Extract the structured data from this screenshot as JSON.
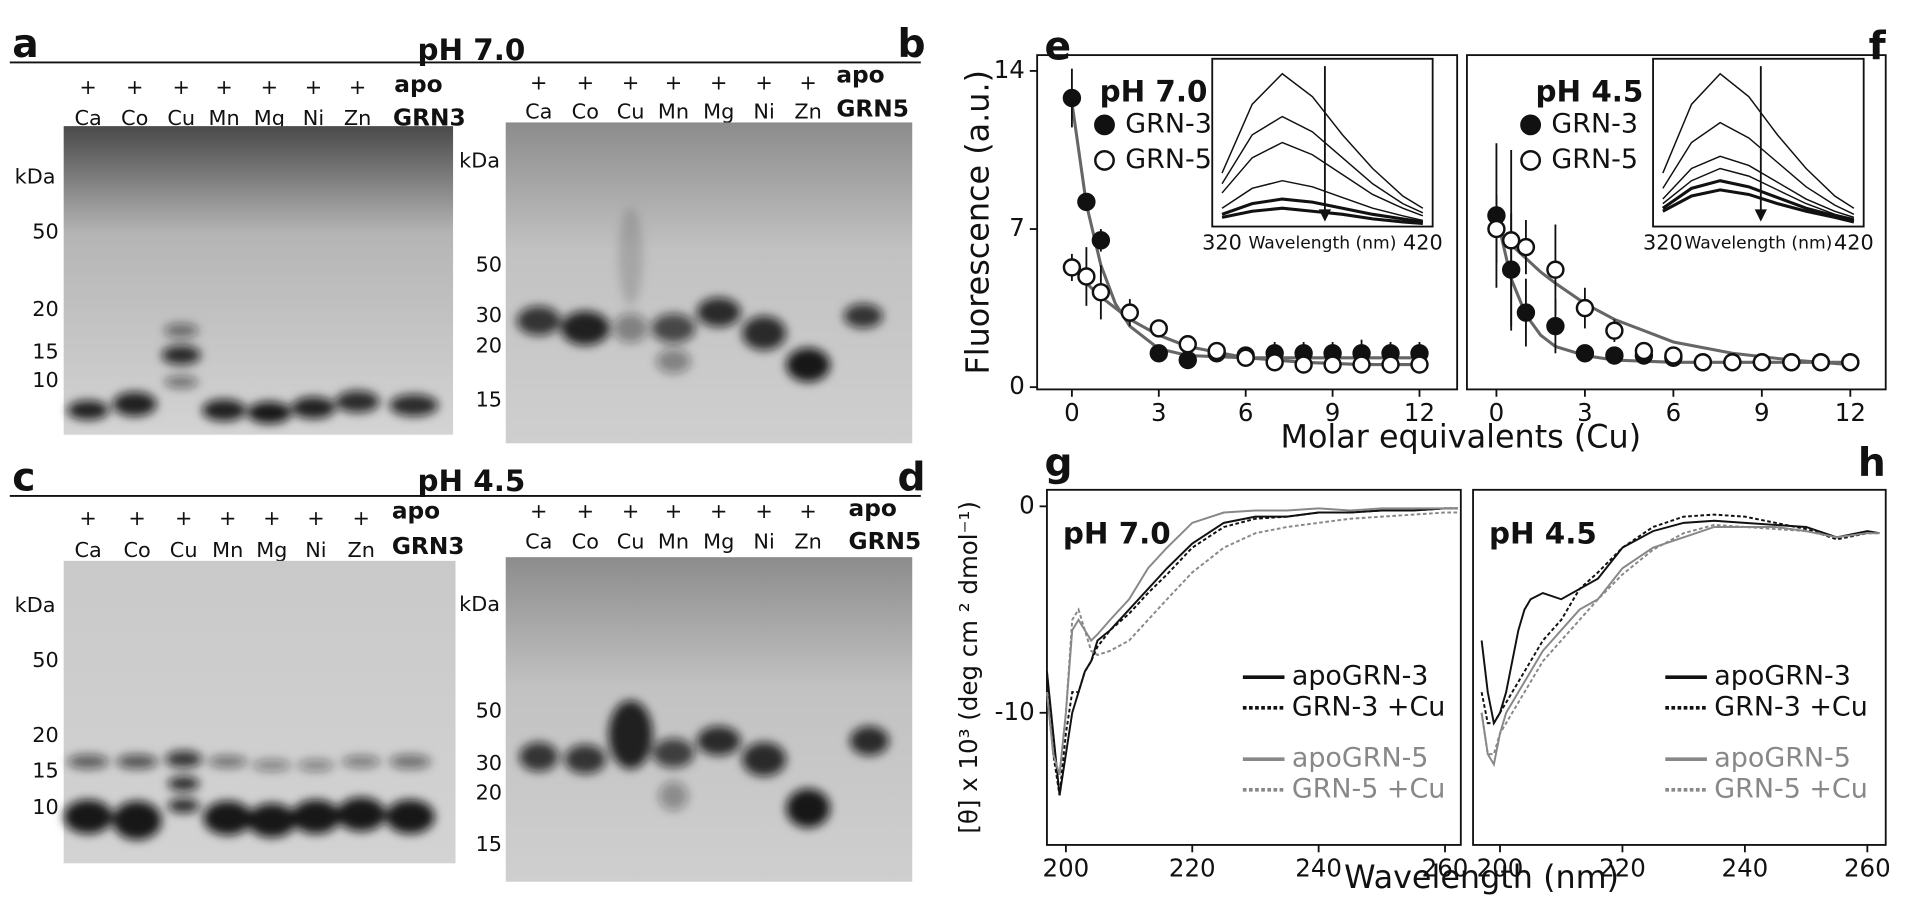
{
  "gel_rows": [
    {
      "title": "pH 7.0",
      "gels": [
        {
          "panel": "a",
          "plus": "+",
          "metals": [
            "Ca",
            "Co",
            "Cu",
            "Mn",
            "Mg",
            "Ni",
            "Zn"
          ],
          "apo": "apo",
          "protein": "GRN3",
          "kda_label": "kDa",
          "markers": [
            50,
            20,
            15,
            10
          ]
        },
        {
          "panel": "b",
          "plus": "+",
          "metals": [
            "Ca",
            "Co",
            "Cu",
            "Mn",
            "Mg",
            "Ni",
            "Zn"
          ],
          "apo": "apo",
          "protein": "GRN5",
          "kda_label": "kDa",
          "markers": [
            50,
            30,
            20,
            15
          ]
        }
      ]
    },
    {
      "title": "pH 4.5",
      "gels": [
        {
          "panel": "c",
          "plus": "+",
          "metals": [
            "Ca",
            "Co",
            "Cu",
            "Mn",
            "Mg",
            "Ni",
            "Zn"
          ],
          "apo": "apo",
          "protein": "GRN3",
          "kda_label": "kDa",
          "markers": [
            50,
            20,
            15,
            10
          ]
        },
        {
          "panel": "d",
          "plus": "+",
          "metals": [
            "Ca",
            "Co",
            "Cu",
            "Mn",
            "Mg",
            "Ni",
            "Zn"
          ],
          "apo": "apo",
          "protein": "GRN5",
          "kda_label": "kDa",
          "markers": [
            50,
            30,
            20,
            15
          ]
        }
      ]
    }
  ],
  "chart_data": [
    {
      "type": "scatter",
      "panel": "e",
      "title": "pH 7.0",
      "ylabel": "Fluorescence (a.u.)",
      "xlabel": "Molar equivalents (Cu)",
      "xlim": [
        -1.2,
        13.3
      ],
      "ylim": [
        -0.1,
        14.7
      ],
      "xticks": [
        0,
        3,
        6,
        9,
        12
      ],
      "yticks": [
        0,
        7,
        14
      ],
      "series": [
        {
          "name": "GRN-3",
          "color": "#111",
          "filled": true,
          "x": [
            0,
            0.5,
            1,
            3,
            4,
            5,
            6,
            7,
            8,
            9,
            10,
            11,
            12
          ],
          "values": [
            12.8,
            8.2,
            6.5,
            1.5,
            1.2,
            1.5,
            1.4,
            1.5,
            1.5,
            1.5,
            1.5,
            1.5,
            1.5
          ],
          "errors": [
            1.3,
            0.3,
            0.5,
            0.2,
            0.2,
            0.3,
            0.3,
            0.5,
            0.5,
            0.5,
            0.6,
            0.5,
            0.5
          ]
        },
        {
          "name": "GRN-5",
          "color": "#111",
          "filled": false,
          "x": [
            0,
            0.5,
            1,
            2,
            3,
            4,
            5,
            6,
            7,
            8,
            9,
            10,
            11,
            12
          ],
          "values": [
            5.3,
            4.9,
            4.2,
            3.3,
            2.6,
            1.9,
            1.6,
            1.3,
            1.1,
            1.0,
            1.0,
            1.0,
            1.0,
            1.0
          ],
          "errors": [
            0.6,
            1.3,
            1.2,
            0.6,
            0.4,
            0.3,
            0.3,
            0.3,
            0.2,
            0.2,
            0.2,
            0.2,
            0.2,
            0.2
          ]
        }
      ],
      "fits": [
        {
          "color": "#666",
          "x": [
            0,
            0.5,
            1,
            1.5,
            2,
            3,
            4,
            6,
            8,
            10,
            12
          ],
          "values": [
            12.6,
            8.1,
            5.4,
            3.7,
            2.7,
            1.7,
            1.4,
            1.3,
            1.3,
            1.3,
            1.3
          ]
        },
        {
          "color": "#666",
          "x": [
            0,
            0.5,
            1,
            1.5,
            2,
            3,
            4,
            6,
            8,
            10,
            12
          ],
          "values": [
            5.4,
            4.6,
            4.0,
            3.5,
            3.0,
            2.3,
            1.8,
            1.3,
            1.1,
            1.0,
            1.0
          ]
        }
      ],
      "inset": {
        "xlabel": "Wavelength (nm)",
        "xlim": [
          320,
          420
        ],
        "ylim": [
          0,
          1.05
        ],
        "xticks": [
          320,
          420
        ],
        "x": [
          320,
          335,
          350,
          365,
          380,
          395,
          410,
          420
        ],
        "curves": [
          [
            0.35,
            0.8,
            1.0,
            0.85,
            0.6,
            0.38,
            0.2,
            0.12
          ],
          [
            0.28,
            0.6,
            0.72,
            0.62,
            0.45,
            0.28,
            0.15,
            0.09
          ],
          [
            0.22,
            0.45,
            0.55,
            0.47,
            0.34,
            0.21,
            0.12,
            0.07
          ],
          [
            0.12,
            0.25,
            0.3,
            0.26,
            0.19,
            0.12,
            0.07,
            0.04
          ],
          [
            0.08,
            0.15,
            0.18,
            0.16,
            0.12,
            0.08,
            0.05,
            0.03
          ],
          [
            0.06,
            0.1,
            0.12,
            0.1,
            0.08,
            0.05,
            0.03,
            0.02
          ]
        ]
      }
    },
    {
      "type": "scatter",
      "panel": "f",
      "title": "pH 4.5",
      "xlim": [
        -1.0,
        13.2
      ],
      "ylim": [
        -0.1,
        14.7
      ],
      "xticks": [
        0,
        3,
        6,
        9,
        12
      ],
      "series": [
        {
          "name": "GRN-3",
          "color": "#111",
          "filled": true,
          "x": [
            0,
            0.5,
            1,
            2,
            3,
            4,
            5,
            6,
            7,
            8,
            9,
            10,
            11,
            12
          ],
          "values": [
            7.6,
            5.2,
            3.3,
            2.7,
            1.5,
            1.4,
            1.4,
            1.3,
            1.1,
            1.1,
            1.1,
            1.1,
            1.1,
            1.1
          ],
          "errors": [
            3.2,
            2.5,
            1.5,
            1.2,
            0.3,
            0.3,
            0.3,
            0.3,
            0.2,
            0.2,
            0.2,
            0.2,
            0.2,
            0.2
          ]
        },
        {
          "name": "GRN-5",
          "color": "#111",
          "filled": false,
          "x": [
            0,
            0.5,
            1,
            2,
            3,
            4,
            5,
            6,
            7,
            8,
            9,
            10,
            11,
            12
          ],
          "values": [
            7.0,
            6.5,
            6.2,
            5.2,
            3.5,
            2.5,
            1.6,
            1.4,
            1.1,
            1.1,
            1.1,
            1.1,
            1.1,
            1.1
          ],
          "errors": [
            1.5,
            4.0,
            1.2,
            2.0,
            0.9,
            0.5,
            0.3,
            0.3,
            0.2,
            0.2,
            0.2,
            0.2,
            0.2,
            0.2
          ]
        }
      ],
      "fits": [
        {
          "color": "#666",
          "x": [
            0,
            0.5,
            1,
            1.5,
            2,
            3,
            4,
            6,
            8,
            10,
            12
          ],
          "values": [
            7.6,
            4.8,
            3.2,
            2.3,
            1.8,
            1.4,
            1.2,
            1.1,
            1.1,
            1.1,
            1.1
          ]
        },
        {
          "color": "#666",
          "x": [
            0,
            0.5,
            1,
            1.5,
            2,
            3,
            4,
            6,
            8,
            10,
            12
          ],
          "values": [
            7.0,
            6.3,
            5.7,
            5.1,
            4.6,
            3.7,
            3.0,
            2.0,
            1.5,
            1.2,
            1.0
          ]
        }
      ],
      "inset": {
        "xlabel": "Wavelength (nm)",
        "xlim": [
          320,
          420
        ],
        "ylim": [
          0,
          1.05
        ],
        "xticks": [
          320,
          420
        ],
        "x": [
          320,
          335,
          350,
          365,
          380,
          395,
          410,
          420
        ],
        "curves": [
          [
            0.35,
            0.8,
            1.0,
            0.85,
            0.6,
            0.38,
            0.2,
            0.12
          ],
          [
            0.25,
            0.55,
            0.68,
            0.58,
            0.42,
            0.26,
            0.14,
            0.08
          ],
          [
            0.18,
            0.38,
            0.46,
            0.4,
            0.29,
            0.18,
            0.1,
            0.06
          ],
          [
            0.15,
            0.3,
            0.38,
            0.33,
            0.24,
            0.15,
            0.08,
            0.05
          ],
          [
            0.12,
            0.25,
            0.3,
            0.26,
            0.19,
            0.12,
            0.07,
            0.04
          ],
          [
            0.1,
            0.2,
            0.24,
            0.21,
            0.15,
            0.1,
            0.06,
            0.03
          ]
        ]
      }
    },
    {
      "type": "line",
      "panel": "g",
      "title": "pH 7.0",
      "ylabel": "[θ] x 10³ (deg cm ² dmol⁻¹)",
      "xlabel": "Wavelength (nm)",
      "xlim": [
        197,
        262.5
      ],
      "ylim": [
        -16.4,
        0.8
      ],
      "xticks": [
        200,
        220,
        240,
        260
      ],
      "yticks": [
        0,
        -10
      ],
      "x": [
        197,
        198,
        199,
        200,
        201,
        202,
        203,
        204,
        205,
        207,
        210,
        213,
        216,
        220,
        225,
        230,
        235,
        240,
        245,
        250,
        255,
        260,
        262
      ],
      "series": [
        {
          "name": "apoGRN-3",
          "color": "#111",
          "dashed": false,
          "values": [
            -8,
            -11,
            -14,
            -12,
            -10,
            -9,
            -8,
            -7.5,
            -6.5,
            -6,
            -5,
            -4,
            -3,
            -1.8,
            -0.8,
            -0.5,
            -0.5,
            -0.3,
            -0.3,
            -0.2,
            -0.2,
            -0.1,
            -0.1
          ]
        },
        {
          "name": "GRN-3 +Cu",
          "color": "#111",
          "dashed": true,
          "values": [
            -8,
            -12,
            -14,
            -11,
            -9,
            -9,
            -8,
            -7.5,
            -6.8,
            -6,
            -5.2,
            -4.2,
            -3.3,
            -2,
            -1,
            -0.6,
            -0.5,
            -0.3,
            -0.3,
            -0.2,
            -0.2,
            -0.1,
            -0.1
          ]
        },
        {
          "name": "apoGRN-5",
          "color": "#888",
          "dashed": false,
          "values": [
            -9,
            -12,
            -13,
            -10,
            -6,
            -5.5,
            -6,
            -6.5,
            -6.2,
            -5.5,
            -4.5,
            -3,
            -2,
            -0.8,
            -0.3,
            -0.2,
            -0.2,
            -0.1,
            -0.2,
            -0.1,
            -0.1,
            -0.1,
            -0.1
          ]
        },
        {
          "name": "GRN-5 +Cu",
          "color": "#888",
          "dashed": true,
          "values": [
            -9,
            -12,
            -13,
            -10,
            -5.5,
            -5,
            -6,
            -7,
            -7.2,
            -7,
            -6.5,
            -5.5,
            -4.5,
            -3.2,
            -2,
            -1.3,
            -1,
            -0.8,
            -0.6,
            -0.5,
            -0.4,
            -0.3,
            -0.3
          ]
        }
      ]
    },
    {
      "type": "line",
      "panel": "h",
      "title": "pH 4.5",
      "xlim": [
        195.6,
        263
      ],
      "ylim": [
        -16.4,
        0.8
      ],
      "xticks": [
        200,
        220,
        240,
        260
      ],
      "x": [
        197,
        198,
        199,
        200,
        201,
        202,
        203,
        204,
        205,
        207,
        210,
        213,
        216,
        220,
        225,
        230,
        235,
        240,
        245,
        250,
        255,
        260,
        262
      ],
      "series": [
        {
          "name": "apoGRN-3",
          "color": "#111",
          "dashed": false,
          "values": [
            -6.5,
            -9,
            -10.5,
            -10,
            -9,
            -7.5,
            -6,
            -5,
            -4.5,
            -4.2,
            -4.5,
            -4,
            -3.5,
            -2,
            -1.2,
            -0.8,
            -0.7,
            -0.8,
            -0.9,
            -1,
            -1.5,
            -1.2,
            -1.3
          ]
        },
        {
          "name": "GRN-3 +Cu",
          "color": "#111",
          "dashed": true,
          "values": [
            -9,
            -10.5,
            -10.5,
            -10,
            -9.5,
            -9,
            -8.5,
            -8,
            -7.5,
            -6.5,
            -5.5,
            -4,
            -3.2,
            -2,
            -1,
            -0.5,
            -0.4,
            -0.5,
            -0.8,
            -1.1,
            -1.6,
            -1.3,
            -1.3
          ]
        },
        {
          "name": "apoGRN-5",
          "color": "#888",
          "dashed": false,
          "values": [
            -10,
            -12,
            -12.5,
            -11,
            -10,
            -9.5,
            -9,
            -8.5,
            -8,
            -7,
            -6,
            -5,
            -4.5,
            -3,
            -2,
            -1.5,
            -1,
            -1,
            -1,
            -1.2,
            -1.5,
            -1.3,
            -1.3
          ]
        },
        {
          "name": "GRN-5 +Cu",
          "color": "#888",
          "dashed": true,
          "values": [
            -10,
            -12,
            -12,
            -11,
            -10.5,
            -10,
            -9.5,
            -9,
            -8.5,
            -7.5,
            -6.5,
            -5.5,
            -4.5,
            -3.3,
            -2.1,
            -1.3,
            -0.9,
            -1,
            -1.1,
            -1.2,
            -1.5,
            -1.3,
            -1.3
          ]
        }
      ]
    }
  ]
}
